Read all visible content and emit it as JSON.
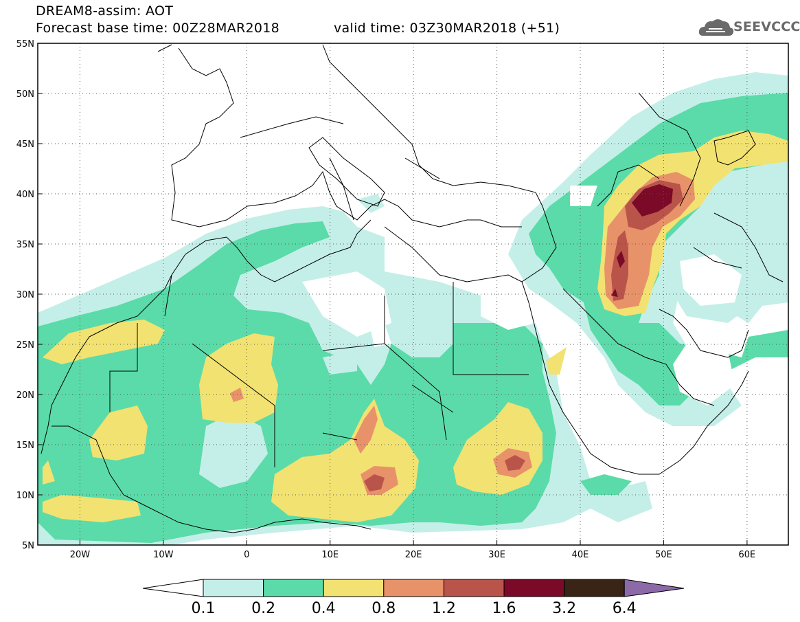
{
  "title": {
    "line1": "DREAM8-assim: AOT",
    "line2_left": "Forecast base time: 00Z28MAR2018",
    "line2_right": "valid time: 03Z30MAR2018 (+51)"
  },
  "logo": {
    "text": "SEEVCCC",
    "icon": "cloud-icon"
  },
  "axes": {
    "x_ticks": [
      "20W",
      "10W",
      "0",
      "10E",
      "20E",
      "30E",
      "40E",
      "50E",
      "60E"
    ],
    "y_ticks": [
      "55N",
      "50N",
      "45N",
      "40N",
      "35N",
      "30N",
      "25N",
      "20N",
      "15N",
      "10N",
      "5N"
    ],
    "lon_range": [
      -25,
      65
    ],
    "lat_range": [
      5,
      55
    ],
    "grid": "dotted"
  },
  "colorbar": {
    "labels": [
      "0.1",
      "0.2",
      "0.4",
      "0.8",
      "1.2",
      "1.6",
      "3.2",
      "6.4"
    ],
    "colors": [
      "#ffffff",
      "#c4efe8",
      "#5bdba9",
      "#f2e271",
      "#e8926a",
      "#b9544a",
      "#7a0a27",
      "#3a2416",
      "#8c6aa8"
    ]
  }
}
